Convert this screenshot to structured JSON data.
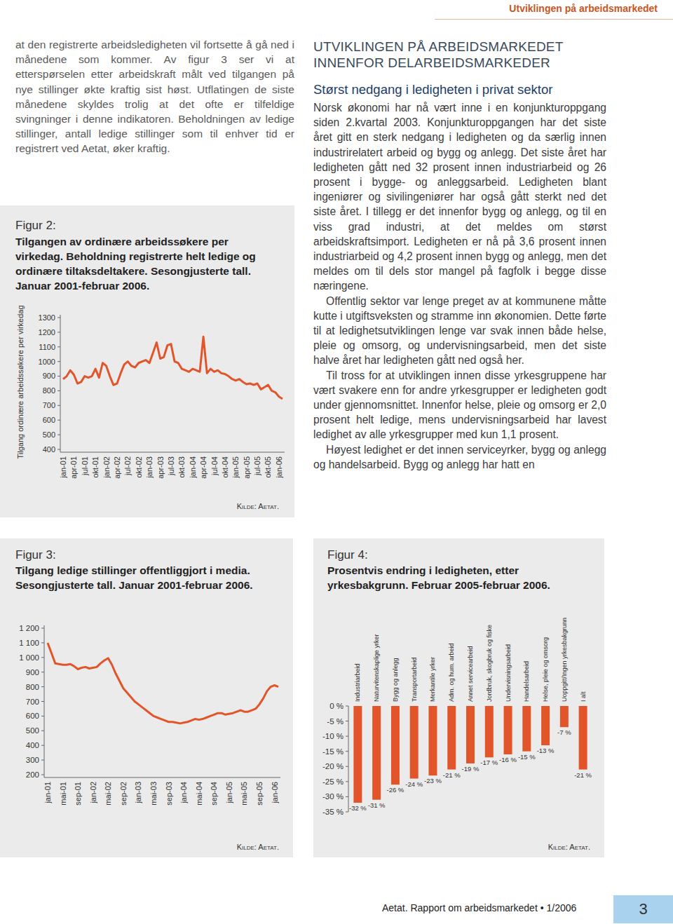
{
  "header": {
    "title": "Utviklingen på arbeidsmarkedet"
  },
  "left_text": {
    "paragraphs": [
      "at den registrerte arbeidsledigheten vil fortsette å gå ned i månedene som kommer. Av figur 3 ser vi at etterspørselen etter arbeidskraft målt ved tilgangen på nye stillinger økte kraftig sist høst. Utflatingen de siste månedene skyldes trolig at det ofte er tilfeldige svingninger i denne indikatoren. Beholdningen av ledige stillinger, antall ledige stillinger som til enhver tid er registrert ved Aetat, øker kraftig."
    ]
  },
  "right_text": {
    "heading": "UTVIKLINGEN PÅ ARBEIDSMARKEDET INNENFOR DELARBEIDSMARKEDER",
    "subheading": "Størst nedgang i ledigheten i privat sektor",
    "paragraphs": [
      "Norsk økonomi har nå vært inne i en konjunkturoppgang siden 2.kvartal 2003. Konjunkturoppgangen har det siste året gitt en sterk nedgang i ledigheten og da særlig innen industrirelatert arbeid og bygg og anlegg. Det siste året har ledigheten gått ned 32 prosent innen industriarbeid og 26 prosent i bygge- og anleggsarbeid. Ledigheten blant ingeniører og sivilingeniører har også gått sterkt ned det siste året. I tillegg er det innenfor bygg og anlegg, og til en viss grad industri, at det meldes om størst arbeidskraftsimport. Ledigheten er nå på 3,6 prosent innen industriarbeid og 4,2 prosent innen bygg og anlegg, men det meldes om til dels stor mangel på fagfolk i begge disse næringene.",
      "Offentlig sektor var lenge preget av at kommunene måtte kutte i utgiftsveksten og stramme inn økonomien. Dette førte til at ledighetsutviklingen lenge var svak innen både helse, pleie og omsorg, og undervisningsarbeid, men det siste halve året har ledigheten gått ned også her.",
      "Til tross for at utviklingen innen disse yrkesgruppene har vært svakere enn for andre yrkesgrupper er ledigheten godt under gjennomsnittet. Innenfor helse, pleie og omsorg er 2,0 prosent helt ledige, mens undervisningsarbeid har lavest ledighet av alle yrkesgrupper med kun 1,1 prosent.",
      "Høyest ledighet er det innen serviceyrker, bygg og anlegg og handelsarbeid. Bygg og anlegg har hatt en"
    ]
  },
  "figures": [
    {
      "label": "Figur 2:",
      "source": "Kilde: Aetat."
    },
    {
      "label": "Figur 3:",
      "source": "Kilde: Aetat."
    },
    {
      "label": "Figur 4:",
      "source": "Kilde: Aetat."
    }
  ],
  "chart_data": [
    {
      "type": "line",
      "title": "Tilgangen av ordinære arbeidssøkere per virkedag. Beholdning registrerte helt ledige og ordinære tiltaksdeltakere. Sesongjusterte tall. Januar 2001-februar 2006.",
      "y_label": "Tilgang ordinære arbeidssøkere per virkedag",
      "categories": [
        "jan-01",
        null,
        null,
        "apr-01",
        null,
        null,
        "jul-01",
        null,
        null,
        "okt-01",
        null,
        null,
        "jan-02",
        null,
        null,
        "apr-02",
        null,
        null,
        "jul-02",
        null,
        null,
        "okt-02",
        null,
        null,
        "jan-03",
        null,
        null,
        "apr-03",
        null,
        null,
        "jul-03",
        null,
        null,
        "okt-03",
        null,
        null,
        "jan-04",
        null,
        null,
        "apr-04",
        null,
        null,
        "jul-04",
        null,
        null,
        "okt-04",
        null,
        null,
        "jan-05",
        null,
        null,
        "apr-05",
        null,
        null,
        "jul-05",
        null,
        null,
        "okt-05",
        null,
        null,
        "jan-06",
        null
      ],
      "values": [
        880,
        900,
        940,
        910,
        850,
        860,
        900,
        890,
        900,
        950,
        890,
        990,
        970,
        900,
        840,
        850,
        920,
        980,
        1000,
        970,
        960,
        990,
        1000,
        1010,
        990,
        1060,
        1130,
        1020,
        1030,
        1110,
        1120,
        1000,
        990,
        950,
        940,
        930,
        950,
        940,
        930,
        1170,
        920,
        950,
        930,
        940,
        920,
        915,
        900,
        880,
        870,
        880,
        860,
        845,
        850,
        840,
        850,
        810,
        825,
        840,
        800,
        790,
        760,
        745
      ],
      "color": "#e2552a",
      "ylim": [
        400,
        1300
      ],
      "yticks": [
        1300,
        1200,
        1100,
        1000,
        900,
        800,
        700,
        600,
        500,
        400
      ],
      "grid": false
    },
    {
      "type": "line",
      "title": "Tilgang ledige stillinger offentliggjort i media. Sesongjusterte tall. Januar 2001-februar 2006.",
      "categories": [
        "jan-01",
        null,
        null,
        null,
        "mai-01",
        null,
        null,
        null,
        "sep-01",
        null,
        null,
        null,
        "jan-02",
        null,
        null,
        null,
        "mai-02",
        null,
        null,
        null,
        "sep-02",
        null,
        null,
        null,
        "jan-03",
        null,
        null,
        null,
        "mai-03",
        null,
        null,
        null,
        "sep-03",
        null,
        null,
        null,
        "jan-04",
        null,
        null,
        null,
        "mai-04",
        null,
        null,
        null,
        "sep-04",
        null,
        null,
        null,
        "jan-05",
        null,
        null,
        null,
        "mai-05",
        null,
        null,
        null,
        "sep-05",
        null,
        null,
        null,
        "jan-06",
        null
      ],
      "values": [
        1100,
        1030,
        960,
        955,
        950,
        950,
        955,
        940,
        920,
        930,
        935,
        925,
        930,
        935,
        960,
        980,
        995,
        950,
        890,
        840,
        790,
        760,
        730,
        700,
        680,
        660,
        640,
        620,
        600,
        590,
        580,
        570,
        560,
        560,
        555,
        550,
        555,
        560,
        570,
        580,
        575,
        580,
        590,
        600,
        610,
        620,
        620,
        610,
        615,
        620,
        630,
        640,
        630,
        630,
        640,
        650,
        680,
        720,
        770,
        800,
        810,
        800
      ],
      "color": "#e2552a",
      "ylim": [
        200,
        1200
      ],
      "yticks": [
        {
          "value": 1200,
          "label": "1 200"
        },
        {
          "value": 1100,
          "label": "1 100"
        },
        {
          "value": 1000,
          "label": "1 000"
        },
        900,
        800,
        700,
        600,
        500,
        400,
        300,
        200
      ],
      "grid": false
    },
    {
      "type": "bar",
      "title": "Prosentvis endring i ledigheten, etter yrkesbakgrunn. Februar 2005-februar 2006.",
      "categories": [
        "Industriarbeid",
        "Naturvitenskaplige yrker",
        "Bygg og anlegg",
        "Transportarbeid",
        "Merkantile yrker",
        "Adm. og hum. arbeid",
        "Annet servicearbeid",
        "Jordbruk, skogbruk og fiske",
        "Undervisningsarbeid",
        "Handelsarbeid",
        "Helse, pleie og omsorg",
        "Uoppgitt/Ingen yrkesbakgrunn",
        "I alt"
      ],
      "values": [
        -32,
        -31,
        -26,
        -24,
        -23,
        -21,
        -19,
        -17,
        -16,
        -15,
        -13,
        -7,
        -21
      ],
      "value_labels": [
        "-32 %",
        "-31 %",
        "-26 %",
        "-24 %",
        "-23 %",
        "-21 %",
        "-19 %",
        "-17 %",
        "-16 %",
        "-15 %",
        "-13 %",
        "-7 %",
        "-21 %"
      ],
      "data_labels": true,
      "color": "#e2552a",
      "ylim": [
        -35,
        0
      ],
      "yticks": [
        {
          "value": 0,
          "label": "0 %"
        },
        {
          "value": -5,
          "label": "-5 %"
        },
        {
          "value": -10,
          "label": "-10 %"
        },
        {
          "value": -15,
          "label": "-15 %"
        },
        {
          "value": -20,
          "label": "-20 %"
        },
        {
          "value": -25,
          "label": "-25 %"
        },
        {
          "value": -30,
          "label": "-30 %"
        },
        {
          "value": -35,
          "label": "-35 %"
        }
      ],
      "grid": false
    }
  ],
  "footer": {
    "text": "Aetat. Rapport om arbeidsmarkedet • 1/2006",
    "page": "3"
  }
}
